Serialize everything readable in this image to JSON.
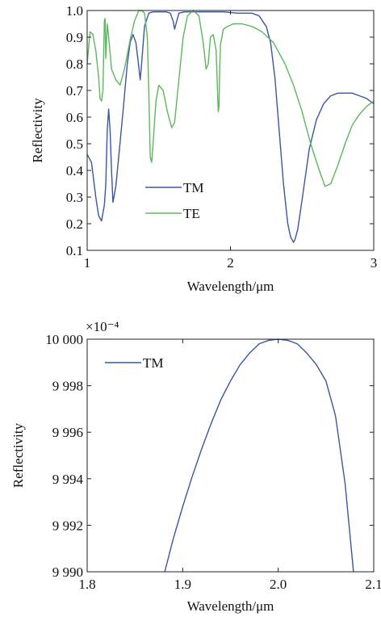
{
  "chart_data": [
    {
      "type": "line",
      "xlabel": "Wavelength/μm",
      "ylabel": "Reflectivity",
      "xlim": [
        1,
        3
      ],
      "ylim": [
        0.1,
        1.0
      ],
      "xticks": [
        1,
        2,
        3
      ],
      "xtick_labels": [
        "1",
        "2",
        "3"
      ],
      "yticks": [
        0.1,
        0.2,
        0.3,
        0.4,
        0.5,
        0.6,
        0.7,
        0.8,
        0.9,
        1.0
      ],
      "ytick_labels": [
        "0.1",
        "0.2",
        "0.3",
        "0.4",
        "0.5",
        "0.6",
        "0.7",
        "0.8",
        "0.9",
        "1.0"
      ],
      "grid": false,
      "legend_position": "lower-left",
      "series": [
        {
          "name": "TM",
          "color": "#3a55a4",
          "x": [
            1.0,
            1.03,
            1.06,
            1.08,
            1.1,
            1.12,
            1.13,
            1.14,
            1.15,
            1.16,
            1.17,
            1.18,
            1.2,
            1.22,
            1.25,
            1.28,
            1.3,
            1.32,
            1.34,
            1.36,
            1.37,
            1.38,
            1.4,
            1.43,
            1.46,
            1.5,
            1.55,
            1.58,
            1.6,
            1.61,
            1.62,
            1.64,
            1.68,
            1.75,
            1.85,
            1.95,
            2.05,
            2.15,
            2.2,
            2.25,
            2.28,
            2.31,
            2.34,
            2.37,
            2.4,
            2.42,
            2.44,
            2.45,
            2.47,
            2.5,
            2.55,
            2.6,
            2.65,
            2.7,
            2.75,
            2.8,
            2.85,
            2.9,
            2.95,
            3.0
          ],
          "y": [
            0.46,
            0.43,
            0.3,
            0.23,
            0.21,
            0.27,
            0.35,
            0.55,
            0.63,
            0.55,
            0.4,
            0.28,
            0.34,
            0.45,
            0.62,
            0.8,
            0.88,
            0.91,
            0.88,
            0.79,
            0.74,
            0.8,
            0.94,
            0.99,
            0.995,
            0.995,
            0.995,
            0.99,
            0.96,
            0.93,
            0.95,
            0.99,
            0.995,
            0.995,
            0.995,
            0.995,
            0.99,
            0.99,
            0.98,
            0.94,
            0.88,
            0.75,
            0.55,
            0.35,
            0.2,
            0.15,
            0.13,
            0.14,
            0.18,
            0.29,
            0.48,
            0.59,
            0.65,
            0.68,
            0.69,
            0.69,
            0.69,
            0.68,
            0.67,
            0.65
          ]
        },
        {
          "name": "TE",
          "color": "#5cb85c",
          "x": [
            1.0,
            1.02,
            1.04,
            1.06,
            1.08,
            1.09,
            1.1,
            1.11,
            1.12,
            1.125,
            1.13,
            1.14,
            1.15,
            1.17,
            1.2,
            1.23,
            1.26,
            1.3,
            1.33,
            1.36,
            1.38,
            1.4,
            1.42,
            1.43,
            1.44,
            1.45,
            1.46,
            1.48,
            1.5,
            1.53,
            1.56,
            1.59,
            1.61,
            1.64,
            1.67,
            1.7,
            1.74,
            1.78,
            1.81,
            1.83,
            1.845,
            1.86,
            1.88,
            1.9,
            1.915,
            1.92,
            1.925,
            1.93,
            1.95,
            1.98,
            2.02,
            2.08,
            2.15,
            2.22,
            2.3,
            2.38,
            2.44,
            2.5,
            2.56,
            2.62,
            2.66,
            2.7,
            2.75,
            2.8,
            2.85,
            2.9,
            2.95,
            3.0
          ],
          "y": [
            0.8,
            0.92,
            0.91,
            0.85,
            0.75,
            0.67,
            0.66,
            0.7,
            0.96,
            0.97,
            0.82,
            0.95,
            0.9,
            0.78,
            0.74,
            0.72,
            0.78,
            0.89,
            0.96,
            1.0,
            1.0,
            0.99,
            0.9,
            0.7,
            0.45,
            0.43,
            0.5,
            0.66,
            0.72,
            0.7,
            0.62,
            0.56,
            0.58,
            0.74,
            0.9,
            0.98,
            1.0,
            0.98,
            0.88,
            0.78,
            0.8,
            0.9,
            0.91,
            0.85,
            0.62,
            0.64,
            0.78,
            0.87,
            0.93,
            0.94,
            0.95,
            0.95,
            0.94,
            0.92,
            0.88,
            0.8,
            0.72,
            0.62,
            0.5,
            0.4,
            0.34,
            0.35,
            0.42,
            0.5,
            0.57,
            0.61,
            0.64,
            0.66
          ]
        }
      ]
    },
    {
      "type": "line",
      "xlabel": "Wavelength/μm",
      "ylabel": "Reflectivity",
      "xlim": [
        1.8,
        2.1
      ],
      "ylim": [
        9990,
        10000
      ],
      "scale_label": "×10⁻⁴",
      "xticks": [
        1.8,
        1.9,
        2.0,
        2.1
      ],
      "xtick_labels": [
        "1.8",
        "1.9",
        "2.0",
        "2.1"
      ],
      "yticks": [
        9990,
        9992,
        9994,
        9996,
        9998,
        10000
      ],
      "ytick_labels": [
        "9 990",
        "9 992",
        "9 994",
        "9 996",
        "9 998",
        "10 000"
      ],
      "grid": false,
      "legend_position": "top-left",
      "series": [
        {
          "name": "TM",
          "color": "#3a55a4",
          "x": [
            1.8812,
            1.89,
            1.9,
            1.91,
            1.92,
            1.93,
            1.94,
            1.95,
            1.96,
            1.97,
            1.98,
            1.99,
            2.0,
            2.01,
            2.02,
            2.03,
            2.04,
            2.05,
            2.06,
            2.07,
            2.0788
          ],
          "y": [
            9990.0,
            9991.4,
            9992.8,
            9994.1,
            9995.3,
            9996.4,
            9997.4,
            9998.2,
            9998.9,
            9999.4,
            9999.8,
            9999.95,
            10000.0,
            9999.95,
            9999.8,
            9999.4,
            9998.9,
            9998.2,
            9996.7,
            9993.8,
            9990.0
          ]
        }
      ]
    }
  ]
}
